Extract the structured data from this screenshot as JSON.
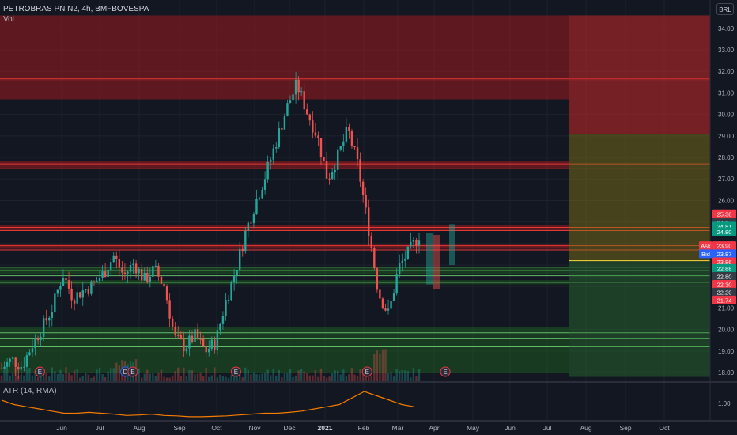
{
  "legend": {
    "title": "PETROBRAS PN N2, 4h, BMFBOVESPA",
    "vol_label": "Vol",
    "atr_label": "ATR (14, RMA)"
  },
  "currency_button": "BRL",
  "colors": {
    "background": "#131722",
    "grid": "#1e222d",
    "axis_text": "#b2b5be",
    "up": "#26a69a",
    "down": "#ef5350",
    "red_zone": "#b71c1c",
    "green_zone": "#1b5e20",
    "atr_line": "#f57c00"
  },
  "price_axis": {
    "ticks": [
      "34.00",
      "33.00",
      "32.00",
      "31.00",
      "30.00",
      "29.00",
      "28.00",
      "27.00",
      "26.00",
      "25.00",
      "24.00",
      "23.00",
      "22.00",
      "21.00",
      "20.00",
      "19.00",
      "18.00"
    ],
    "price_range": [
      17.6,
      34.8
    ]
  },
  "time_axis": {
    "labels": [
      "Jun",
      "Jul",
      "Aug",
      "Sep",
      "Oct",
      "Nov",
      "Dec",
      "2021",
      "Feb",
      "Mar",
      "Apr",
      "May",
      "Jun",
      "Jul",
      "Aug",
      "Sep",
      "Oct"
    ]
  },
  "atr_axis": {
    "label": "1.00"
  },
  "price_tags": [
    {
      "text": "25.38",
      "color": "#f23645",
      "price": 25.38
    },
    {
      "text": "24.97",
      "color": "#363a45",
      "price": 24.97
    },
    {
      "text": "24.81",
      "color": "#089981",
      "price": 24.81
    },
    {
      "text": "24.80",
      "color": "#089981",
      "price": 24.55
    },
    {
      "text": "Ask",
      "color": "#f23645",
      "price": 23.9,
      "side": "left"
    },
    {
      "text": "23.90",
      "color": "#f23645",
      "price": 23.9
    },
    {
      "text": "Bid",
      "color": "#2962ff",
      "price": 23.52,
      "side": "left"
    },
    {
      "text": "23.87",
      "color": "#2962ff",
      "price": 23.52
    },
    {
      "text": "23.86",
      "color": "#f23645",
      "price": 23.15
    },
    {
      "text": "22.88",
      "color": "#089981",
      "price": 22.84
    },
    {
      "text": "22.80",
      "color": "#363a45",
      "price": 22.47
    },
    {
      "text": "22.30",
      "color": "#f23645",
      "price": 22.1
    },
    {
      "text": "22.20",
      "color": "#363a45",
      "price": 21.74
    },
    {
      "text": "21.74",
      "color": "#f23645",
      "price": 21.37
    }
  ],
  "earnings_markers": [
    {
      "label": "E",
      "t": 0.052
    },
    {
      "label": "D",
      "t": 0.168
    },
    {
      "label": "E",
      "t": 0.178
    },
    {
      "label": "E",
      "t": 0.318
    },
    {
      "label": "E",
      "t": 0.496
    },
    {
      "label": "E",
      "t": 0.602
    }
  ],
  "zones": {
    "red": [
      [
        30.7,
        34.6
      ],
      [
        27.45,
        27.85
      ],
      [
        24.6,
        24.85
      ],
      [
        23.75,
        23.95
      ]
    ],
    "green": [
      [
        22.55,
        22.9
      ],
      [
        22.1,
        22.3
      ],
      [
        18.0,
        20.1
      ]
    ],
    "lines_red": [
      31.55,
      31.65,
      27.7,
      27.5,
      24.75,
      24.6,
      23.9,
      23.7
    ],
    "lines_green": [
      22.9,
      22.75,
      22.5,
      22.2,
      19.85,
      19.6,
      19.2
    ]
  },
  "projection": {
    "red_box": [
      29.1,
      34.6
    ],
    "mid_line": 23.2,
    "yellow_box": [
      23.2,
      29.1
    ],
    "green_box": [
      17.8,
      23.2
    ]
  },
  "chart_data": {
    "type": "candlestick",
    "x_range": [
      "2020-05",
      "2021-10"
    ],
    "series": [
      {
        "name": "price_path",
        "values": [
          18.2,
          18.6,
          18.3,
          19.3,
          20.1,
          21.0,
          22.6,
          21.5,
          21.8,
          22.1,
          22.6,
          23.4,
          22.5,
          23.1,
          22.3,
          22.8,
          22.0,
          19.6,
          19.2,
          19.7,
          19.0,
          19.4,
          21.3,
          22.8,
          24.6,
          26.0,
          27.3,
          28.8,
          30.3,
          31.4,
          30.1,
          29.0,
          27.0,
          28.0,
          29.3,
          27.6,
          24.8,
          21.7,
          20.7,
          22.9,
          23.6,
          24.4
        ]
      },
      {
        "name": "atr",
        "values": [
          1.1,
          1.0,
          0.95,
          0.9,
          0.85,
          0.8,
          0.8,
          0.82,
          0.8,
          0.78,
          0.75,
          0.76,
          0.78,
          0.75,
          0.74,
          0.72,
          0.72,
          0.73,
          0.74,
          0.76,
          0.78,
          0.8,
          0.8,
          0.82,
          0.85,
          0.9,
          0.95,
          1.0,
          1.15,
          1.3,
          1.2,
          1.1,
          1.0,
          0.95
        ]
      }
    ]
  }
}
